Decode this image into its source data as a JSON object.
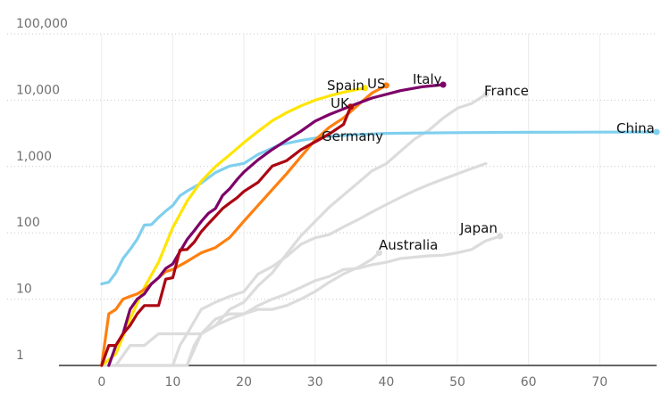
{
  "chart_data": {
    "type": "line",
    "title": "",
    "xlabel": "",
    "ylabel": "",
    "xlim": [
      -6,
      78
    ],
    "ylim": [
      1,
      100000
    ],
    "yscale": "log",
    "grid": "horizontal dotted + vertical",
    "x_ticks": [
      0,
      10,
      20,
      30,
      40,
      50,
      60,
      70
    ],
    "y_ticks": [
      1,
      10,
      100,
      1000,
      10000,
      100000
    ],
    "y_tick_labels": [
      "1",
      "10",
      "100",
      "1,000",
      "10,000",
      "100,000"
    ],
    "series": [
      {
        "name": "China",
        "color": "#7fcfee",
        "end_marker": true,
        "x": [
          0,
          1,
          2,
          3,
          4,
          5,
          6,
          7,
          8,
          9,
          10,
          11,
          12,
          14,
          16,
          18,
          20,
          22,
          25,
          28,
          31,
          35,
          40,
          50,
          60,
          70,
          78
        ],
        "y": [
          17,
          18,
          25,
          41,
          56,
          80,
          131,
          133,
          171,
          213,
          259,
          361,
          425,
          563,
          811,
          1016,
          1113,
          1523,
          2118,
          2470,
          2788,
          3004,
          3160,
          3240,
          3280,
          3305,
          3315
        ]
      },
      {
        "name": "Italy",
        "color": "#7d0068",
        "end_marker": true,
        "x": [
          1,
          2,
          3,
          4,
          5,
          6,
          7,
          8,
          9,
          10,
          11,
          12,
          13,
          14,
          15,
          16,
          17,
          18,
          19,
          20,
          22,
          24,
          26,
          28,
          30,
          32,
          35,
          38,
          42,
          45,
          48
        ],
        "y": [
          1,
          2,
          3,
          7,
          10,
          12,
          17,
          21,
          29,
          34,
          52,
          79,
          107,
          148,
          197,
          233,
          366,
          463,
          631,
          827,
          1266,
          1809,
          2503,
          3405,
          4825,
          6077,
          8165,
          10779,
          13915,
          15887,
          17127
        ]
      },
      {
        "name": "Spain",
        "color": "#ffe500",
        "end_marker": true,
        "x": [
          0,
          2,
          4,
          6,
          8,
          10,
          12,
          14,
          16,
          18,
          20,
          22,
          24,
          26,
          28,
          30,
          32,
          34,
          36,
          37
        ],
        "y": [
          1,
          1.5,
          5,
          15,
          36,
          120,
          300,
          600,
          1000,
          1500,
          2300,
          3400,
          4900,
          6500,
          8200,
          10000,
          11600,
          13200,
          14600,
          15200
        ]
      },
      {
        "name": "US",
        "color": "#ff7f0f",
        "end_marker": true,
        "x": [
          0,
          1,
          2,
          3,
          4,
          5,
          6,
          7,
          8,
          9,
          10,
          12,
          14,
          16,
          18,
          20,
          22,
          24,
          26,
          28,
          30,
          32,
          34,
          36,
          38,
          40
        ],
        "y": [
          1,
          6,
          7,
          10,
          11,
          12,
          14,
          17,
          21,
          26,
          28,
          37,
          50,
          60,
          85,
          150,
          260,
          450,
          780,
          1400,
          2500,
          3900,
          5400,
          8400,
          12800,
          16700
        ]
      },
      {
        "name": "UK",
        "color": "#ab0613",
        "end_marker": true,
        "x": [
          0,
          1,
          2,
          3,
          4,
          5,
          6,
          7,
          8,
          9,
          10,
          11,
          12,
          13,
          14,
          15,
          16,
          17,
          18,
          19,
          20,
          22,
          24,
          26,
          28,
          30,
          32,
          34,
          35
        ],
        "y": [
          1,
          2,
          2,
          3,
          4,
          6,
          8,
          8,
          8,
          20,
          21,
          55,
          56,
          72,
          104,
          137,
          178,
          233,
          281,
          335,
          422,
          578,
          1019,
          1228,
          1789,
          2352,
          3095,
          4320,
          7978
        ]
      },
      {
        "name": "Germany",
        "color": "#dcdcdc",
        "end_marker": false,
        "x": [
          0,
          2,
          4,
          6,
          8,
          10,
          11,
          12,
          14,
          16,
          18,
          20,
          22,
          24,
          26,
          28,
          30,
          32,
          34,
          36,
          38,
          40,
          42,
          44,
          46,
          48,
          50,
          52,
          54
        ],
        "y": [
          1,
          1,
          1,
          1,
          1,
          1,
          2,
          3,
          7,
          9,
          11,
          13,
          24,
          31,
          44,
          67,
          84,
          94,
          123,
          157,
          206,
          267,
          342,
          433,
          533,
          645,
          775,
          931,
          1107
        ]
      },
      {
        "name": "France",
        "color": "#dcdcdc",
        "end_marker": true,
        "x": [
          0,
          2,
          4,
          6,
          8,
          10,
          12,
          14,
          16,
          18,
          20,
          22,
          24,
          26,
          28,
          30,
          32,
          34,
          36,
          38,
          40,
          42,
          44,
          46,
          48,
          50,
          52,
          54
        ],
        "y": [
          1,
          1,
          2,
          2,
          3,
          3,
          3,
          3,
          4,
          7,
          9,
          16,
          25,
          48,
          90,
          148,
          244,
          372,
          562,
          860,
          1100,
          1696,
          2606,
          3523,
          5387,
          7560,
          8911,
          12210
        ]
      },
      {
        "name": "Japan",
        "color": "#dcdcdc",
        "end_marker": true,
        "x": [
          2,
          4,
          6,
          8,
          10,
          12,
          14,
          16,
          18,
          20,
          22,
          24,
          26,
          28,
          30,
          32,
          34,
          36,
          38,
          40,
          42,
          44,
          46,
          48,
          50,
          52,
          54,
          56
        ],
        "y": [
          1,
          1,
          1,
          1,
          1,
          1,
          3,
          4,
          5,
          6,
          8,
          10,
          12,
          15,
          19,
          22,
          28,
          29,
          33,
          36,
          41,
          43,
          45,
          46,
          50,
          56,
          76,
          89
        ]
      },
      {
        "name": "Australia",
        "color": "#dcdcdc",
        "end_marker": true,
        "x": [
          12,
          13,
          14,
          16,
          18,
          20,
          22,
          24,
          26,
          28,
          30,
          32,
          34,
          36,
          38,
          39
        ],
        "y": [
          1,
          2,
          3,
          5,
          6,
          6,
          7,
          7,
          8,
          10,
          13,
          18,
          24,
          30,
          40,
          50
        ]
      }
    ]
  }
}
